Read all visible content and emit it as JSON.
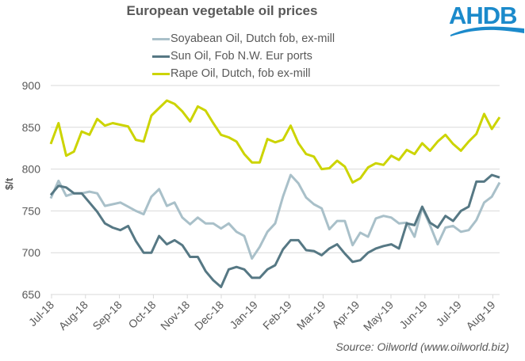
{
  "logo": {
    "text": "AHDB",
    "color": "#1B8ACB"
  },
  "chart_data": {
    "type": "line",
    "title": "European vegetable oil prices",
    "xlabel": "",
    "ylabel": "$/t",
    "ylim": [
      650,
      900
    ],
    "yticks": [
      650,
      700,
      750,
      800,
      850,
      900
    ],
    "grid": true,
    "legend_position": "top-center",
    "x_tick_labels": [
      "Jul-18",
      "Aug-18",
      "Sep-18",
      "Oct-18",
      "Nov-18",
      "Dec-18",
      "Jan-19",
      "Feb-19",
      "Mar-19",
      "Apr-19",
      "May-19",
      "Jun-19",
      "Jul-19",
      "Aug-19"
    ],
    "x_frequency": "weekly",
    "n_points": 59,
    "source": "Source: Oilworld (www.oilworld.biz)",
    "series": [
      {
        "name": "Soyabean Oil, Dutch fob, ex-mill",
        "color": "#A9C0C9",
        "values": [
          765,
          786,
          768,
          771,
          771,
          773,
          771,
          756,
          758,
          760,
          755,
          750,
          746,
          767,
          776,
          756,
          760,
          742,
          734,
          742,
          735,
          735,
          729,
          735,
          725,
          720,
          693,
          707,
          725,
          735,
          767,
          793,
          783,
          766,
          758,
          753,
          728,
          738,
          738,
          709,
          724,
          719,
          741,
          744,
          742,
          735,
          736,
          719,
          754,
          733,
          710,
          730,
          732,
          725,
          727,
          739,
          760,
          767,
          784
        ]
      },
      {
        "name": "Sun Oil, Fob N.W. Eur ports",
        "color": "#567884",
        "values": [
          769,
          780,
          778,
          771,
          771,
          760,
          749,
          735,
          730,
          727,
          732,
          714,
          700,
          700,
          720,
          710,
          715,
          709,
          695,
          695,
          678,
          667,
          659,
          680,
          683,
          680,
          670,
          670,
          680,
          685,
          704,
          715,
          715,
          703,
          702,
          697,
          705,
          710,
          699,
          689,
          691,
          700,
          705,
          708,
          710,
          705,
          735,
          733,
          755,
          736,
          730,
          744,
          738,
          750,
          755,
          785,
          785,
          793,
          790
        ]
      },
      {
        "name": "Rape Oil, Dutch, fob ex-mill",
        "color": "#CCD400",
        "values": [
          830,
          855,
          816,
          821,
          845,
          841,
          860,
          852,
          855,
          853,
          851,
          835,
          833,
          864,
          873,
          882,
          878,
          869,
          857,
          875,
          870,
          855,
          841,
          838,
          833,
          818,
          808,
          808,
          836,
          832,
          835,
          852,
          831,
          818,
          815,
          800,
          801,
          810,
          803,
          784,
          789,
          802,
          807,
          805,
          816,
          811,
          823,
          818,
          831,
          822,
          833,
          841,
          830,
          822,
          833,
          842,
          866,
          848,
          862
        ]
      }
    ]
  }
}
